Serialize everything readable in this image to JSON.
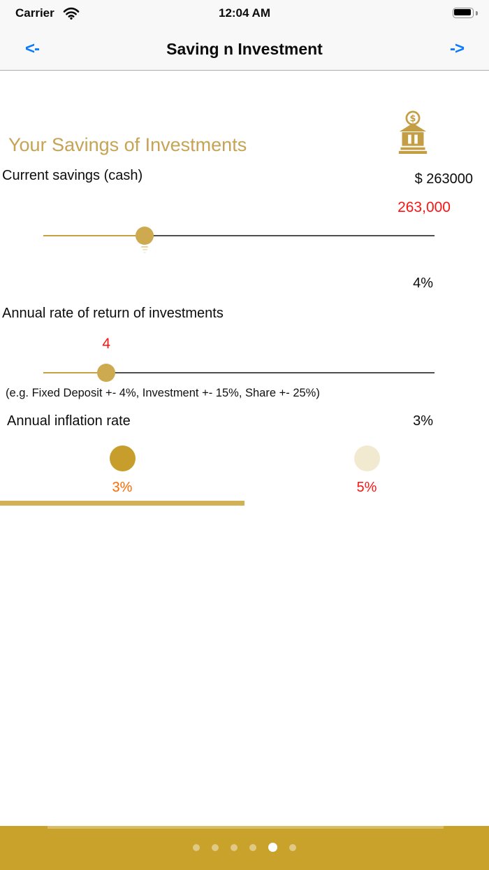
{
  "status_bar": {
    "carrier": "Carrier",
    "time": "12:04 AM"
  },
  "nav": {
    "back_label": "<-",
    "title": "Saving n Investment",
    "forward_label": "->"
  },
  "header": {
    "heading": "Your Savings of Investments",
    "icon": "bank-dollar-icon"
  },
  "savings": {
    "label": "Current savings (cash)",
    "amount": "$ 263000",
    "value_label": "263,000",
    "slider_percent": 25.9
  },
  "rate_of_return": {
    "percent_label": "4%",
    "label": "Annual rate of return of investments",
    "value_label": "4",
    "slider_percent": 16.1,
    "hint": "(e.g. Fixed Deposit +- 4%, Investment +- 15%, Share +- 25%)"
  },
  "inflation": {
    "label": "Annual inflation rate",
    "value": "3%",
    "options": [
      {
        "label": "3%",
        "selected": true
      },
      {
        "label": "5%",
        "selected": false
      }
    ],
    "progress_percent": 50
  },
  "page_control": {
    "pages": 6,
    "active_index": 4
  },
  "colors": {
    "gold_heading": "#C6A355",
    "gold_slider": "#C5A146",
    "track_dark": "#4F4F4F",
    "value_red": "#FA1414",
    "value_orange": "#FF6A00",
    "circle_gold": "#C79E2B",
    "circle_cream": "#F2EAD0",
    "progress_gold": "#D2B156",
    "bottom_bar_gold": "#C9A22B",
    "nav_blue": "#0A7AFF"
  }
}
